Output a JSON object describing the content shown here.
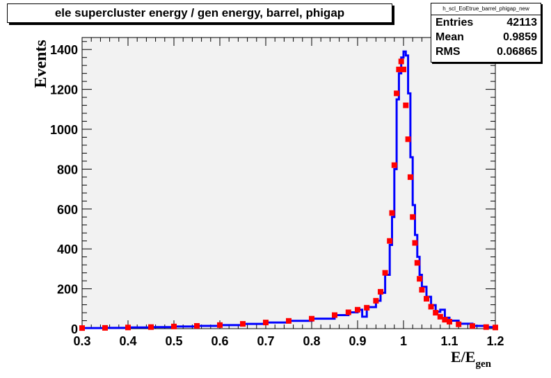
{
  "title": "ele supercluster energy / gen energy, barrel, phigap",
  "stats": {
    "name": "h_scl_EoEtrue_barrel_phigap_new",
    "rows": [
      {
        "label": "Entries",
        "value": "42113"
      },
      {
        "label": "Mean",
        "value": "0.9859"
      },
      {
        "label": "RMS",
        "value": "0.06865"
      }
    ]
  },
  "chart_data": {
    "type": "line",
    "xlabel_main": "E/E",
    "xlabel_sub": "gen",
    "ylabel": "Events",
    "xlim": [
      0.3,
      1.2
    ],
    "ylim": [
      0,
      1460
    ],
    "x_ticks": [
      "0.3",
      "0.4",
      "0.5",
      "0.6",
      "0.7",
      "0.8",
      "0.9",
      "1",
      "1.1",
      "1.2"
    ],
    "y_ticks": [
      "0",
      "200",
      "400",
      "600",
      "800",
      "1000",
      "1200",
      "1400"
    ],
    "grid": true,
    "colors": {
      "frame_bg": "#f2f2f2",
      "blue": "#0000ff",
      "red": "#ff0000"
    },
    "series": [
      {
        "style": "step-line",
        "color": "#0000ff",
        "points": [
          [
            0.3,
            3
          ],
          [
            0.35,
            4
          ],
          [
            0.4,
            6
          ],
          [
            0.45,
            8
          ],
          [
            0.5,
            11
          ],
          [
            0.55,
            14
          ],
          [
            0.6,
            18
          ],
          [
            0.65,
            24
          ],
          [
            0.7,
            31
          ],
          [
            0.75,
            39
          ],
          [
            0.8,
            50
          ],
          [
            0.85,
            68
          ],
          [
            0.88,
            82
          ],
          [
            0.9,
            95
          ],
          [
            0.91,
            60
          ],
          [
            0.92,
            108
          ],
          [
            0.94,
            140
          ],
          [
            0.95,
            180
          ],
          [
            0.96,
            270
          ],
          [
            0.97,
            420
          ],
          [
            0.975,
            560
          ],
          [
            0.98,
            800
          ],
          [
            0.985,
            1150
          ],
          [
            0.99,
            1280
          ],
          [
            0.995,
            1360
          ],
          [
            1.0,
            1390
          ],
          [
            1.005,
            1370
          ],
          [
            1.01,
            1180
          ],
          [
            1.015,
            860
          ],
          [
            1.02,
            620
          ],
          [
            1.025,
            470
          ],
          [
            1.03,
            360
          ],
          [
            1.035,
            270
          ],
          [
            1.04,
            210
          ],
          [
            1.05,
            160
          ],
          [
            1.06,
            118
          ],
          [
            1.07,
            85
          ],
          [
            1.08,
            95
          ],
          [
            1.09,
            55
          ],
          [
            1.1,
            40
          ],
          [
            1.12,
            25
          ],
          [
            1.15,
            14
          ],
          [
            1.18,
            8
          ],
          [
            1.2,
            6
          ]
        ]
      },
      {
        "style": "markers",
        "color": "#ff0000",
        "points": [
          [
            0.3,
            3
          ],
          [
            0.35,
            4
          ],
          [
            0.4,
            6
          ],
          [
            0.45,
            8
          ],
          [
            0.5,
            11
          ],
          [
            0.55,
            14
          ],
          [
            0.6,
            18
          ],
          [
            0.65,
            24
          ],
          [
            0.7,
            31
          ],
          [
            0.75,
            39
          ],
          [
            0.8,
            50
          ],
          [
            0.85,
            68
          ],
          [
            0.88,
            82
          ],
          [
            0.9,
            95
          ],
          [
            0.92,
            105
          ],
          [
            0.94,
            140
          ],
          [
            0.95,
            185
          ],
          [
            0.96,
            280
          ],
          [
            0.97,
            440
          ],
          [
            0.975,
            580
          ],
          [
            0.98,
            820
          ],
          [
            0.985,
            1180
          ],
          [
            0.99,
            1300
          ],
          [
            0.995,
            1340
          ],
          [
            1.0,
            1300
          ],
          [
            1.005,
            1120
          ],
          [
            1.01,
            950
          ],
          [
            1.015,
            760
          ],
          [
            1.02,
            560
          ],
          [
            1.025,
            430
          ],
          [
            1.03,
            330
          ],
          [
            1.035,
            250
          ],
          [
            1.04,
            195
          ],
          [
            1.05,
            150
          ],
          [
            1.06,
            110
          ],
          [
            1.07,
            80
          ],
          [
            1.08,
            60
          ],
          [
            1.09,
            45
          ],
          [
            1.1,
            35
          ],
          [
            1.12,
            22
          ],
          [
            1.15,
            13
          ],
          [
            1.18,
            8
          ],
          [
            1.2,
            6
          ]
        ]
      }
    ]
  }
}
